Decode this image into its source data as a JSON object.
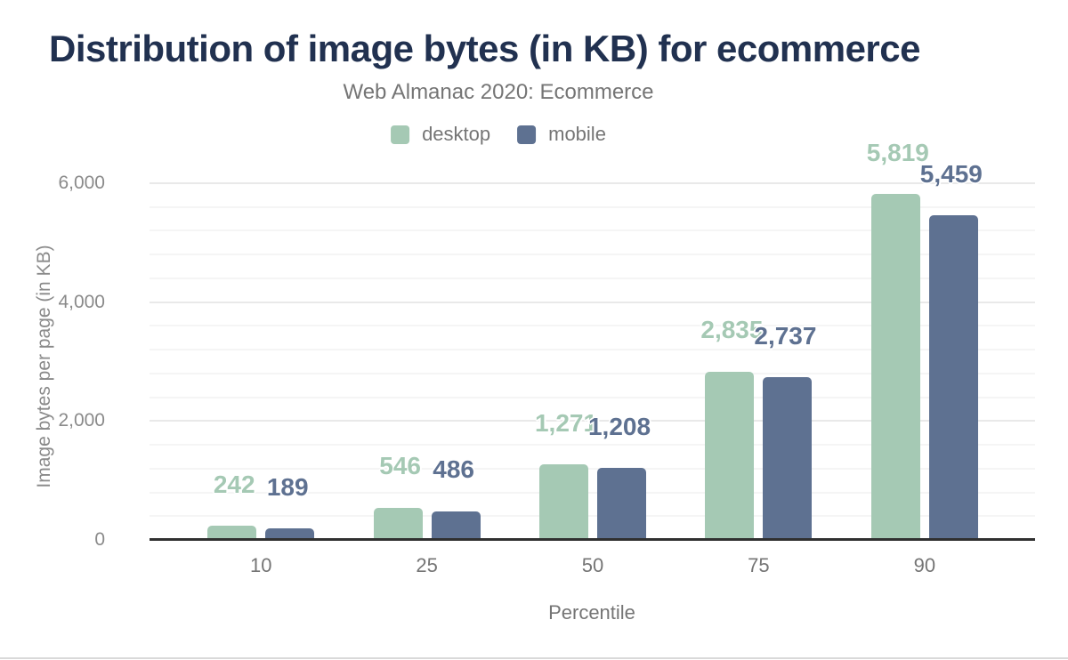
{
  "chart_data": {
    "type": "bar",
    "title": "Distribution of image bytes (in KB) for ecommerce",
    "subtitle": "Web Almanac 2020: Ecommerce",
    "xlabel": "Percentile",
    "ylabel": "Image bytes per page (in KB)",
    "categories": [
      "10",
      "25",
      "50",
      "75",
      "90"
    ],
    "series": [
      {
        "name": "desktop",
        "color": "#a5c9b4",
        "values": [
          242,
          546,
          1271,
          2835,
          5819
        ],
        "labels": [
          "242",
          "546",
          "1,271",
          "2,835",
          "5,819"
        ]
      },
      {
        "name": "mobile",
        "color": "#5e7191",
        "values": [
          189,
          486,
          1208,
          2737,
          5459
        ],
        "labels": [
          "189",
          "486",
          "1,208",
          "2,737",
          "5,459"
        ]
      }
    ],
    "ylim": [
      0,
      6000
    ],
    "yticks": [
      {
        "value": 0,
        "label": "0"
      },
      {
        "value": 2000,
        "label": "2,000"
      },
      {
        "value": 4000,
        "label": "4,000"
      },
      {
        "value": 6000,
        "label": "6,000"
      }
    ],
    "minor_grid_step": 400,
    "grid": "on",
    "legend_position": "top-center"
  },
  "palette": {
    "title_text": "#213150",
    "muted_text": "#757575",
    "tick_text": "#8a8a8a",
    "axis_line": "#303030",
    "grid_major": "#e9e9e9",
    "grid_minor": "#f5f5f5",
    "background": "#ffffff",
    "bottom_rule": "#d9d9d9"
  }
}
